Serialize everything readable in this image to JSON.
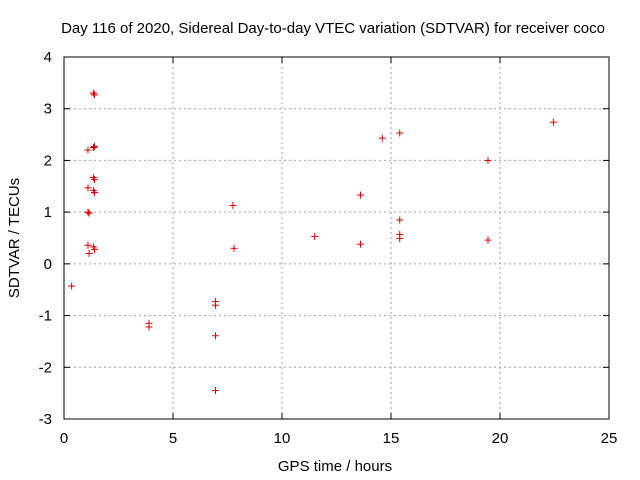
{
  "chart_data": {
    "type": "scatter",
    "title": "Day 116 of 2020, Sidereal Day-to-day VTEC variation (SDTVAR) for receiver coco",
    "xlabel": "GPS time / hours",
    "ylabel": "SDTVAR / TECUs",
    "xlim": [
      0,
      25
    ],
    "ylim": [
      -3,
      4
    ],
    "xticks": [
      0,
      5,
      10,
      15,
      20,
      25
    ],
    "yticks": [
      -3,
      -2,
      -1,
      0,
      1,
      2,
      3,
      4
    ],
    "grid": true,
    "marker": "+",
    "series_color": "#e00000",
    "points": [
      {
        "x": 0.35,
        "y": -0.43
      },
      {
        "x": 1.1,
        "y": 2.2
      },
      {
        "x": 1.35,
        "y": 3.3
      },
      {
        "x": 1.4,
        "y": 3.27
      },
      {
        "x": 1.35,
        "y": 2.25
      },
      {
        "x": 1.4,
        "y": 2.27
      },
      {
        "x": 1.1,
        "y": 1.47
      },
      {
        "x": 1.35,
        "y": 1.67
      },
      {
        "x": 1.4,
        "y": 1.63
      },
      {
        "x": 1.35,
        "y": 1.42
      },
      {
        "x": 1.4,
        "y": 1.38
      },
      {
        "x": 1.1,
        "y": 1.0
      },
      {
        "x": 1.15,
        "y": 0.98
      },
      {
        "x": 1.1,
        "y": 0.36
      },
      {
        "x": 1.35,
        "y": 0.33
      },
      {
        "x": 1.4,
        "y": 0.28
      },
      {
        "x": 1.15,
        "y": 0.2
      },
      {
        "x": 3.9,
        "y": -1.15
      },
      {
        "x": 3.9,
        "y": -1.22
      },
      {
        "x": 6.95,
        "y": -0.73
      },
      {
        "x": 6.95,
        "y": -0.8
      },
      {
        "x": 6.95,
        "y": -1.39
      },
      {
        "x": 6.95,
        "y": -2.45
      },
      {
        "x": 7.75,
        "y": 1.13
      },
      {
        "x": 7.8,
        "y": 0.3
      },
      {
        "x": 11.5,
        "y": 0.53
      },
      {
        "x": 13.6,
        "y": 1.33
      },
      {
        "x": 13.6,
        "y": 0.38
      },
      {
        "x": 14.6,
        "y": 2.43
      },
      {
        "x": 15.4,
        "y": 2.53
      },
      {
        "x": 15.4,
        "y": 0.85
      },
      {
        "x": 15.4,
        "y": 0.57
      },
      {
        "x": 15.4,
        "y": 0.49
      },
      {
        "x": 19.45,
        "y": 2.0
      },
      {
        "x": 19.45,
        "y": 0.46
      },
      {
        "x": 22.45,
        "y": 2.74
      }
    ]
  }
}
